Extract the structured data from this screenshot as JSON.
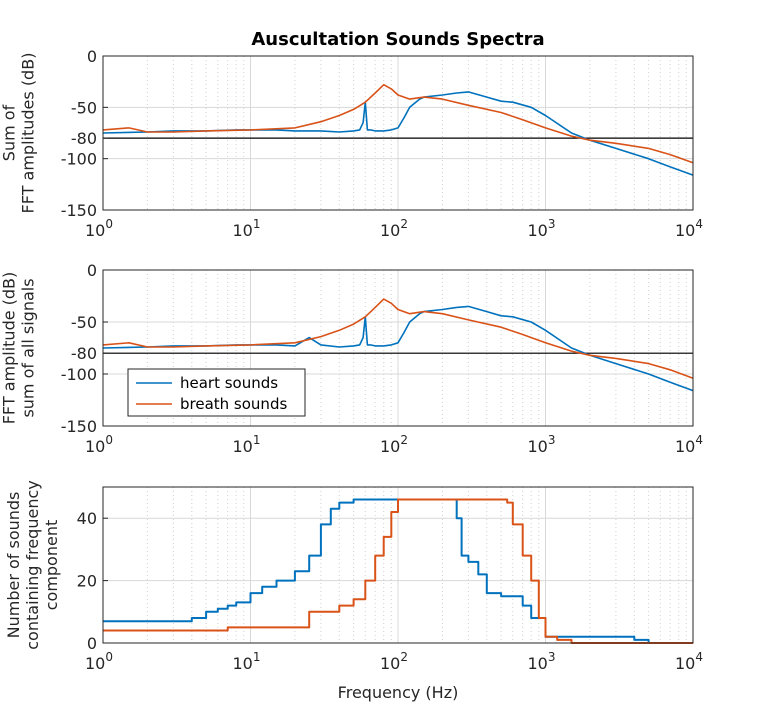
{
  "title": "Auscultation Sounds Spectra",
  "colors": {
    "heart": "#0072BD",
    "breath": "#D95319",
    "grid": "#d8d8d8",
    "axis": "#262626"
  },
  "chart_data": [
    {
      "type": "line",
      "xscale": "log",
      "xlim": [
        1,
        10000
      ],
      "ylim": [
        -150,
        0
      ],
      "xticks": [
        "10^0",
        "10^1",
        "10^2",
        "10^3",
        "10^4"
      ],
      "yticks": [
        "0",
        "-50",
        "-80",
        "-100",
        "-150"
      ],
      "ytick_values": [
        0,
        -50,
        -80,
        -100,
        -150
      ],
      "ylabel": [
        "Sum of",
        "FFT amplitudes (dB)"
      ],
      "xlabel": "",
      "reference_line": -80,
      "grid": true,
      "series": [
        {
          "key": "heart",
          "x": [
            1,
            2,
            3,
            5,
            8,
            10,
            15,
            20,
            30,
            40,
            50,
            55,
            58,
            60,
            62,
            65,
            70,
            80,
            90,
            100,
            110,
            120,
            140,
            150,
            200,
            250,
            300,
            400,
            500,
            600,
            800,
            1000,
            1500,
            2000,
            3000,
            5000,
            7000,
            10000
          ],
          "y": [
            -75,
            -74,
            -73,
            -73,
            -72,
            -72,
            -72,
            -73,
            -73,
            -74,
            -73,
            -72,
            -65,
            -45,
            -72,
            -72,
            -73,
            -73,
            -72,
            -70,
            -60,
            -50,
            -42,
            -40,
            -38,
            -36,
            -35,
            -40,
            -44,
            -45,
            -50,
            -58,
            -75,
            -82,
            -90,
            -100,
            -108,
            -116
          ]
        },
        {
          "key": "breath",
          "x": [
            1,
            1.5,
            2,
            3,
            5,
            10,
            20,
            30,
            40,
            50,
            60,
            70,
            80,
            90,
            100,
            120,
            150,
            200,
            300,
            500,
            700,
            1000,
            1500,
            2000,
            3000,
            5000,
            7000,
            10000
          ],
          "y": [
            -72,
            -70,
            -74,
            -74,
            -73,
            -72,
            -70,
            -64,
            -58,
            -52,
            -45,
            -36,
            -28,
            -32,
            -38,
            -42,
            -40,
            -42,
            -48,
            -55,
            -62,
            -70,
            -78,
            -82,
            -85,
            -90,
            -96,
            -104
          ]
        }
      ]
    },
    {
      "type": "line",
      "xscale": "log",
      "xlim": [
        1,
        10000
      ],
      "ylim": [
        -150,
        0
      ],
      "xticks": [
        "10^0",
        "10^1",
        "10^2",
        "10^3",
        "10^4"
      ],
      "yticks": [
        "0",
        "-50",
        "-80",
        "-100",
        "-150"
      ],
      "ytick_values": [
        0,
        -50,
        -80,
        -100,
        -150
      ],
      "ylabel": [
        "FFT amplitude (dB)",
        "sum of all signals"
      ],
      "xlabel": "",
      "reference_line": -80,
      "grid": true,
      "legend": {
        "placement": "lower-left",
        "entries": [
          {
            "key": "heart",
            "label": "heart sounds"
          },
          {
            "key": "breath",
            "label": "breath sounds"
          }
        ]
      },
      "series": [
        {
          "key": "heart",
          "x": [
            1,
            2,
            3,
            5,
            8,
            10,
            15,
            20,
            25,
            30,
            40,
            50,
            55,
            58,
            60,
            62,
            65,
            70,
            80,
            90,
            100,
            110,
            120,
            140,
            150,
            200,
            250,
            300,
            400,
            500,
            600,
            800,
            1000,
            1500,
            2000,
            3000,
            5000,
            7000,
            10000
          ],
          "y": [
            -75,
            -74,
            -73,
            -73,
            -72,
            -72,
            -72,
            -73,
            -65,
            -72,
            -74,
            -73,
            -72,
            -65,
            -45,
            -72,
            -72,
            -73,
            -73,
            -72,
            -70,
            -60,
            -50,
            -42,
            -40,
            -38,
            -36,
            -35,
            -40,
            -44,
            -45,
            -50,
            -58,
            -75,
            -82,
            -90,
            -100,
            -108,
            -116
          ]
        },
        {
          "key": "breath",
          "x": [
            1,
            1.5,
            2,
            3,
            5,
            10,
            20,
            30,
            40,
            50,
            60,
            70,
            80,
            90,
            100,
            120,
            150,
            200,
            300,
            500,
            700,
            1000,
            1500,
            2000,
            3000,
            5000,
            7000,
            10000
          ],
          "y": [
            -72,
            -70,
            -74,
            -74,
            -73,
            -72,
            -70,
            -64,
            -58,
            -52,
            -45,
            -36,
            -28,
            -32,
            -38,
            -42,
            -40,
            -42,
            -48,
            -55,
            -62,
            -70,
            -78,
            -82,
            -85,
            -90,
            -96,
            -104
          ]
        }
      ]
    },
    {
      "type": "line",
      "xscale": "log",
      "xlim": [
        1,
        10000
      ],
      "ylim": [
        0,
        50
      ],
      "xticks": [
        "10^0",
        "10^1",
        "10^2",
        "10^3",
        "10^4"
      ],
      "yticks": [
        "0",
        "20",
        "40"
      ],
      "ytick_values": [
        0,
        20,
        40
      ],
      "ylabel": [
        "Number of sounds",
        "containing frequency",
        "component"
      ],
      "xlabel": "Frequency (Hz)",
      "grid": true,
      "series": [
        {
          "key": "heart",
          "x": [
            1,
            2,
            3,
            4,
            5,
            6,
            7,
            8,
            9,
            10,
            12,
            15,
            20,
            25,
            30,
            35,
            40,
            50,
            60,
            80,
            100,
            120,
            150,
            200,
            230,
            250,
            270,
            300,
            350,
            400,
            500,
            600,
            700,
            800,
            1000,
            1500,
            2000,
            3000,
            4000,
            5000,
            10000
          ],
          "y": [
            7,
            7,
            7,
            8,
            10,
            11,
            12,
            13,
            13,
            16,
            18,
            20,
            23,
            28,
            38,
            43,
            45,
            46,
            46,
            46,
            46,
            46,
            46,
            46,
            46,
            40,
            28,
            26,
            22,
            16,
            15,
            15,
            12,
            8,
            2,
            2,
            2,
            2,
            1,
            0,
            0
          ]
        },
        {
          "key": "breath",
          "x": [
            1,
            2,
            3,
            5,
            6,
            7,
            10,
            15,
            20,
            25,
            30,
            40,
            50,
            60,
            70,
            80,
            90,
            100,
            120,
            150,
            200,
            300,
            400,
            500,
            550,
            600,
            700,
            800,
            900,
            1000,
            1200,
            1500,
            2000,
            5000,
            10000
          ],
          "y": [
            4,
            4,
            4,
            4,
            4,
            5,
            5,
            5,
            5,
            10,
            10,
            12,
            14,
            20,
            28,
            34,
            42,
            46,
            46,
            46,
            46,
            46,
            46,
            46,
            45,
            38,
            28,
            20,
            8,
            2,
            1,
            0,
            0,
            0,
            0
          ]
        }
      ]
    }
  ]
}
